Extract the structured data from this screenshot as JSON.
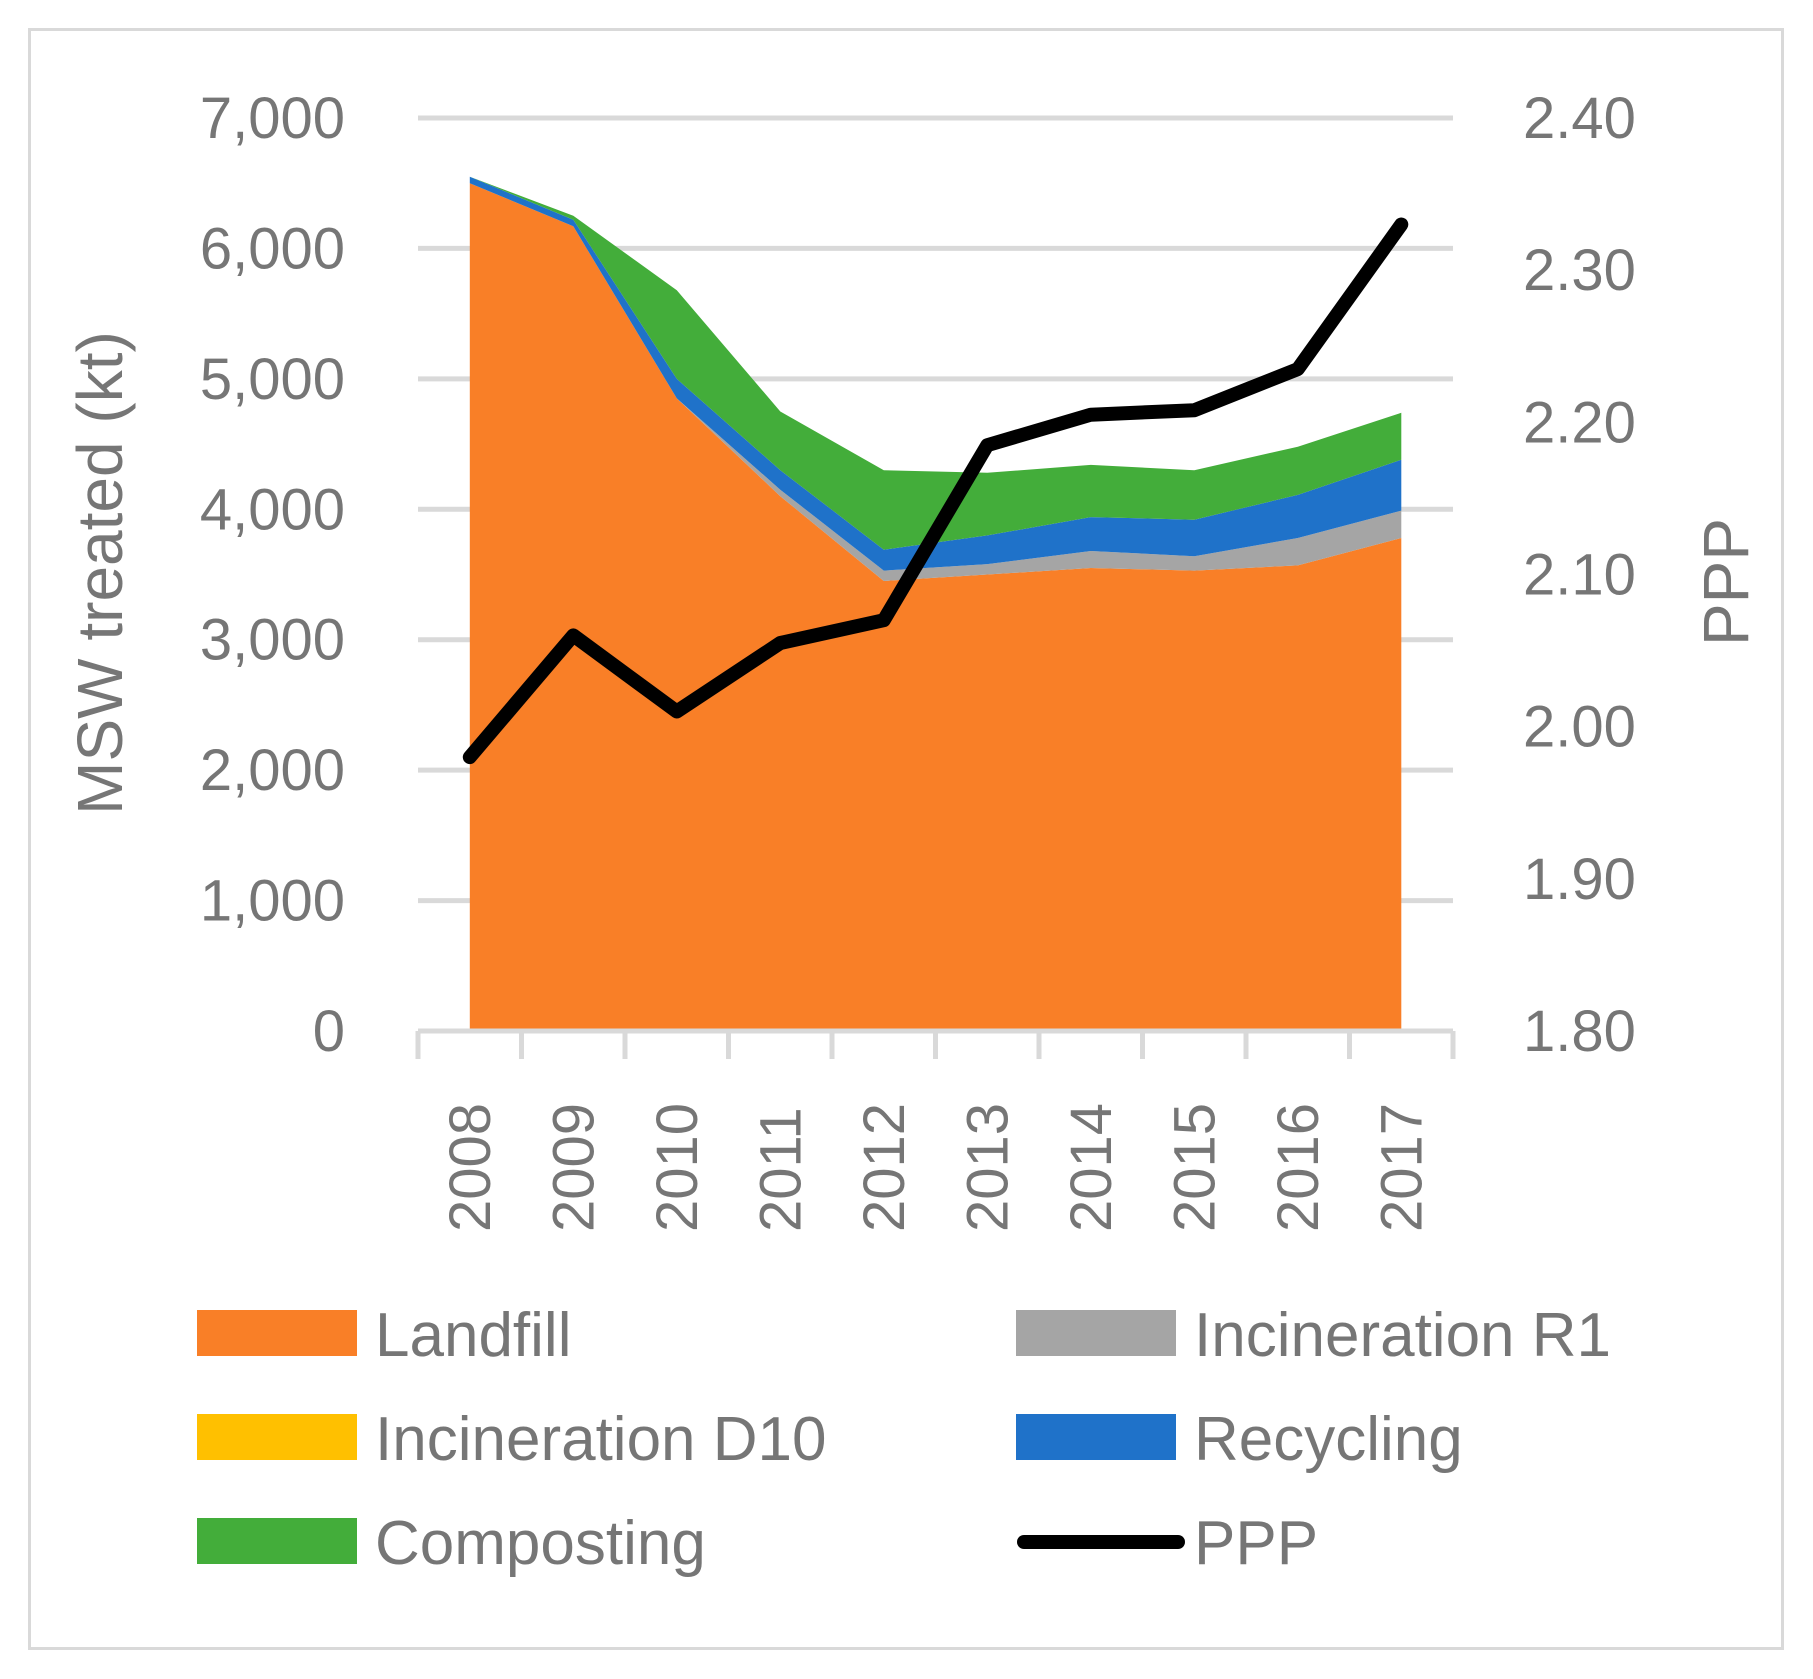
{
  "chart_data": {
    "type": "area",
    "stacked": true,
    "categories": [
      "2008",
      "2009",
      "2010",
      "2011",
      "2012",
      "2013",
      "2014",
      "2015",
      "2016",
      "2017"
    ],
    "series": [
      {
        "name": "Landfill",
        "color": "#f97f27",
        "values": [
          6500,
          6170,
          4850,
          4100,
          3450,
          3500,
          3550,
          3530,
          3570,
          3780
        ]
      },
      {
        "name": "Incineration R1",
        "color": "#a5a5a5",
        "values": [
          0,
          0,
          0,
          50,
          80,
          80,
          130,
          110,
          210,
          210
        ]
      },
      {
        "name": "Incineration D10",
        "color": "#ffc000",
        "values": [
          0,
          0,
          0,
          0,
          0,
          0,
          0,
          0,
          0,
          0
        ]
      },
      {
        "name": "Recycling",
        "color": "#1f72c9",
        "values": [
          50,
          50,
          150,
          150,
          160,
          220,
          260,
          280,
          330,
          390
        ]
      },
      {
        "name": "Composting",
        "color": "#43ad3a",
        "values": [
          0,
          30,
          680,
          450,
          610,
          480,
          400,
          380,
          370,
          360
        ]
      }
    ],
    "line_series": {
      "name": "PPP",
      "color": "#000000",
      "axis": "right",
      "values": [
        1.98,
        2.06,
        2.01,
        2.055,
        2.07,
        2.185,
        2.205,
        2.208,
        2.235,
        2.33
      ]
    },
    "title": "",
    "xlabel": "",
    "ylabel": "MSW treated (kt)",
    "y2label": "PPP",
    "ylim": [
      0,
      7000
    ],
    "y2lim": [
      1.8,
      2.4
    ],
    "yticks": [
      "0",
      "1,000",
      "2,000",
      "3,000",
      "4,000",
      "5,000",
      "6,000",
      "7,000"
    ],
    "y2ticks": [
      "1.80",
      "1.90",
      "2.00",
      "2.10",
      "2.20",
      "2.30",
      "2.40"
    ],
    "grid": true,
    "legend_position": "bottom",
    "legend": [
      {
        "label": "Landfill",
        "color": "#f97f27",
        "kind": "area"
      },
      {
        "label": "Incineration R1",
        "color": "#a5a5a5",
        "kind": "area"
      },
      {
        "label": "Incineration D10",
        "color": "#ffc000",
        "kind": "area"
      },
      {
        "label": "Recycling",
        "color": "#1f72c9",
        "kind": "area"
      },
      {
        "label": "Composting",
        "color": "#43ad3a",
        "kind": "area"
      },
      {
        "label": "PPP",
        "color": "#000000",
        "kind": "line"
      }
    ]
  }
}
